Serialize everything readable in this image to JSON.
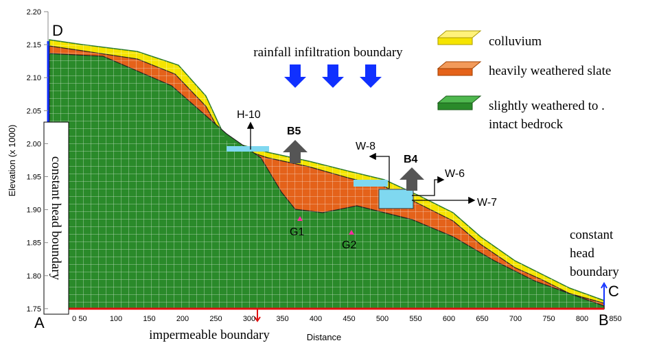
{
  "axes": {
    "x_label": "Distance",
    "y_label": "Elevation (x 1000)",
    "x_ticks": [
      "0",
      "50",
      "100",
      "150",
      "200",
      "250",
      "300",
      "350",
      "400",
      "450",
      "500",
      "550",
      "600",
      "650",
      "700",
      "750",
      "800",
      "850"
    ],
    "y_ticks": [
      "2.20",
      "2.15",
      "2.10",
      "2.05",
      "2.00",
      "1.95",
      "1.90",
      "1.85",
      "1.80",
      "1.75"
    ]
  },
  "legend": {
    "colluvium": "colluvium",
    "heavily": "heavily weathered slate",
    "slightly_1": "slightly weathered to .",
    "slightly_2": "intact bedrock"
  },
  "corners": {
    "a": "A",
    "b": "B",
    "c": "C",
    "d": "D"
  },
  "boundaries": {
    "left": "constant head boundary",
    "top": "rainfall infiltration boundary",
    "bottom": "impermeable boundary",
    "right_1": "constant",
    "right_2": "head",
    "right_3": "boundary"
  },
  "labels": {
    "h10": "H-10",
    "b5": "B5",
    "w8": "W-8",
    "b4": "B4",
    "w6": "W-6",
    "w7": "W-7",
    "g1": "G1",
    "g2": "G2"
  }
}
